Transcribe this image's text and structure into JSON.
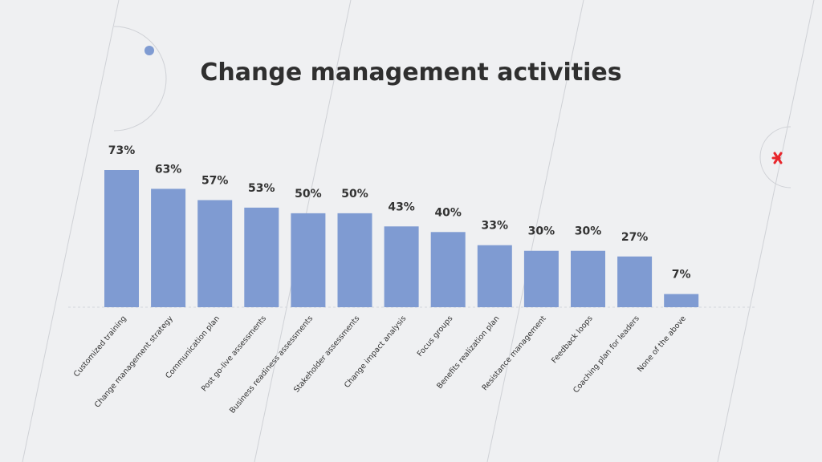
{
  "chart_data": {
    "type": "bar",
    "title": "Change management activities",
    "categories": [
      "Customized training",
      "Change management strategy",
      "Communication plan",
      "Post go-live assessments",
      "Business readiness assessments",
      "Stakeholder assessments",
      "Change impact analysis",
      "Focus groups",
      "Benefits realization plan",
      "Resistance management",
      "Feedback loops",
      "Coaching plan for leaders",
      "None of the above"
    ],
    "values": [
      73,
      63,
      57,
      53,
      50,
      50,
      43,
      40,
      33,
      30,
      30,
      27,
      7
    ],
    "value_labels": [
      "73%",
      "63%",
      "57%",
      "53%",
      "50%",
      "50%",
      "43%",
      "40%",
      "33%",
      "30%",
      "30%",
      "27%",
      "7%"
    ],
    "ylim": [
      0,
      73
    ],
    "unit": "%",
    "grid": false,
    "bar_color": "#7f9bd2"
  },
  "colors": {
    "background": "#eff0f2",
    "accent_dot": "#7f9bd2",
    "accent_star": "#e8262c",
    "decor_line": "#cfd1d6"
  }
}
